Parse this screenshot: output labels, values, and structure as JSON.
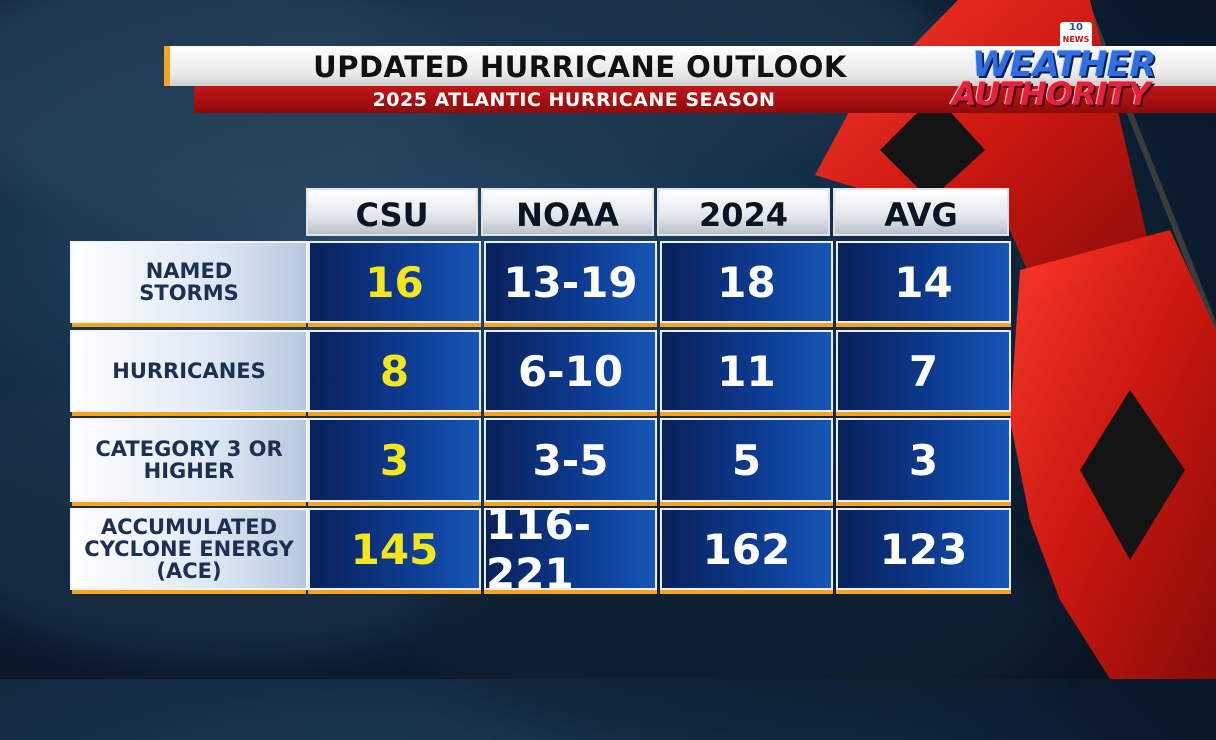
{
  "header": {
    "title": "UPDATED HURRICANE OUTLOOK",
    "subtitle": "2025 ATLANTIC HURRICANE SEASON"
  },
  "logo": {
    "station_badge_top": "10",
    "station_badge_bottom": "NEWS",
    "line1": "WEATHER",
    "line2": "AUTHORITY"
  },
  "table": {
    "columns": [
      "CSU",
      "NOAA",
      "2024",
      "AVG"
    ],
    "rows": [
      {
        "label": "NAMED STORMS",
        "values": [
          "16",
          "13-19",
          "18",
          "14"
        ]
      },
      {
        "label": "HURRICANES",
        "values": [
          "8",
          "6-10",
          "11",
          "7"
        ]
      },
      {
        "label": "CATEGORY 3 OR HIGHER",
        "values": [
          "3",
          "3-5",
          "5",
          "3"
        ]
      },
      {
        "label": "ACCUMULATED CYCLONE ENERGY (ACE)",
        "values": [
          "145",
          "116-221",
          "162",
          "123"
        ]
      }
    ]
  },
  "colors": {
    "accent_orange": "#f5a41d",
    "header_red": "#c11718",
    "csu_yellow": "#f4e61c",
    "cell_blue": "#0d3a8f",
    "flag_red": "#e0241c"
  }
}
